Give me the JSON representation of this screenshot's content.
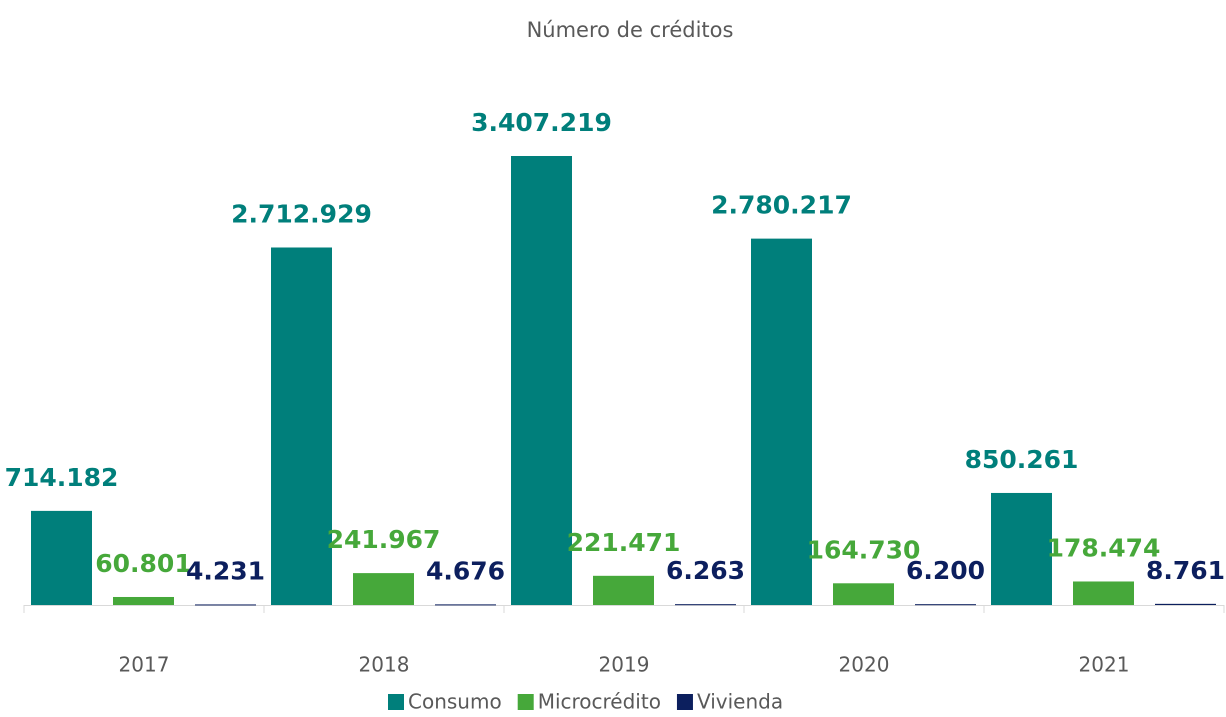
{
  "chart_data": {
    "type": "bar",
    "title": "Número de créditos",
    "categories": [
      "2017",
      "2018",
      "2019",
      "2020",
      "2021"
    ],
    "series": [
      {
        "name": "Consumo",
        "color": "#007f7b",
        "values": [
          714182,
          2712929,
          3407219,
          2780217,
          850261
        ],
        "value_labels": [
          "714.182",
          "2.712.929",
          "3.407.219",
          "2.780.217",
          "850.261"
        ]
      },
      {
        "name": "Microcrédito",
        "color": "#46a83a",
        "values": [
          60801,
          241967,
          221471,
          164730,
          178474
        ],
        "value_labels": [
          "60.801",
          "241.967",
          "221.471",
          "164.730",
          "178.474"
        ]
      },
      {
        "name": "Vivienda",
        "color": "#0c1f5e",
        "values": [
          4231,
          4676,
          6263,
          6200,
          8761
        ],
        "value_labels": [
          "4.231",
          "4.676",
          "6.263",
          "6.200",
          "8.761"
        ]
      }
    ]
  }
}
